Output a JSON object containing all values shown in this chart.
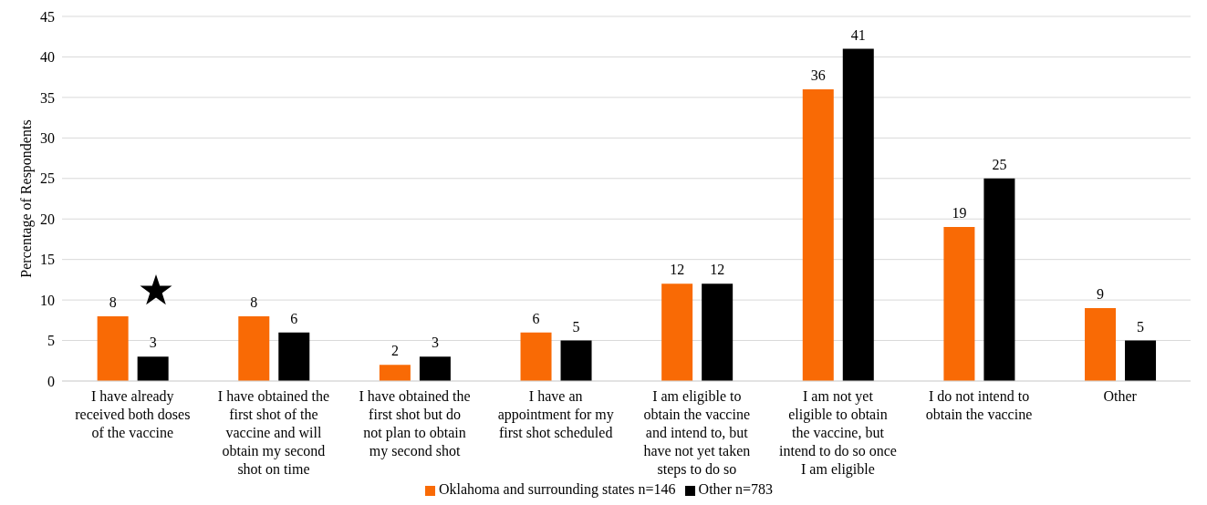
{
  "chart_data": {
    "type": "bar",
    "ylabel": "Percentage of Respondents",
    "categories": [
      "I have already received both doses of the vaccine",
      "I have obtained the first shot of the vaccine and will obtain my second shot on time",
      "I have obtained the first shot but do not plan to obtain my second shot",
      "I have an appointment for my first shot scheduled",
      "I am eligible to obtain the vaccine and intend to, but have not yet taken steps to do so",
      "I am not yet eligible to obtain the vaccine, but intend to do so once I am eligible",
      "I do not intend to obtain the vaccine",
      "Other"
    ],
    "series": [
      {
        "name": "Oklahoma and surrounding states n=146",
        "color": "#f96a05",
        "values": [
          8,
          8,
          2,
          6,
          12,
          36,
          19,
          9
        ]
      },
      {
        "name": "Other n=783",
        "color": "#000000",
        "values": [
          3,
          6,
          3,
          5,
          12,
          41,
          25,
          5
        ]
      }
    ],
    "ylim": [
      0,
      45
    ],
    "yticks": [
      0,
      5,
      10,
      15,
      20,
      25,
      30,
      35,
      40,
      45
    ],
    "grid": "y",
    "legend": "bottom",
    "data_labels": true
  }
}
